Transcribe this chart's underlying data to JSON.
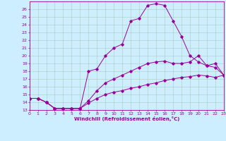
{
  "xlabel": "Windchill (Refroidissement éolien,°C)",
  "bg_color": "#cceeff",
  "line_color": "#990099",
  "grid_color": "#aaccbb",
  "xlim": [
    0,
    23
  ],
  "ylim": [
    13,
    27
  ],
  "xticks": [
    0,
    1,
    2,
    3,
    4,
    5,
    6,
    7,
    8,
    9,
    10,
    11,
    12,
    13,
    14,
    15,
    16,
    17,
    18,
    19,
    20,
    21,
    22,
    23
  ],
  "yticks": [
    13,
    14,
    15,
    16,
    17,
    18,
    19,
    20,
    21,
    22,
    23,
    24,
    25,
    26
  ],
  "series": [
    {
      "x": [
        0,
        1,
        2,
        3,
        4,
        5,
        6,
        7,
        8,
        9,
        10,
        11,
        12,
        13,
        14,
        15,
        16,
        17,
        18,
        19,
        20,
        21,
        22,
        23
      ],
      "y": [
        14.5,
        14.5,
        14.0,
        13.2,
        13.2,
        13.2,
        13.2,
        13.9,
        14.5,
        15.0,
        15.3,
        15.5,
        15.8,
        16.0,
        16.3,
        16.5,
        16.8,
        17.0,
        17.2,
        17.3,
        17.5,
        17.4,
        17.2,
        17.5
      ]
    },
    {
      "x": [
        0,
        1,
        2,
        3,
        4,
        5,
        6,
        7,
        8,
        9,
        10,
        11,
        12,
        13,
        14,
        15,
        16,
        17,
        18,
        19,
        20,
        21,
        22,
        23
      ],
      "y": [
        14.5,
        14.5,
        14.0,
        13.2,
        13.2,
        13.2,
        13.2,
        14.2,
        15.5,
        16.5,
        17.0,
        17.5,
        18.0,
        18.5,
        19.0,
        19.2,
        19.3,
        19.0,
        19.0,
        19.2,
        20.0,
        18.7,
        19.0,
        17.5
      ]
    },
    {
      "x": [
        0,
        1,
        2,
        3,
        4,
        5,
        6,
        7,
        8,
        9,
        10,
        11,
        12,
        13,
        14,
        15,
        16,
        17,
        18,
        19,
        20,
        21,
        22,
        23
      ],
      "y": [
        14.5,
        14.5,
        14.0,
        13.2,
        13.2,
        13.2,
        13.2,
        18.0,
        18.3,
        20.0,
        21.0,
        21.5,
        24.5,
        24.8,
        26.5,
        26.7,
        26.5,
        24.5,
        22.5,
        20.0,
        19.2,
        18.7,
        18.5,
        17.5
      ]
    }
  ]
}
